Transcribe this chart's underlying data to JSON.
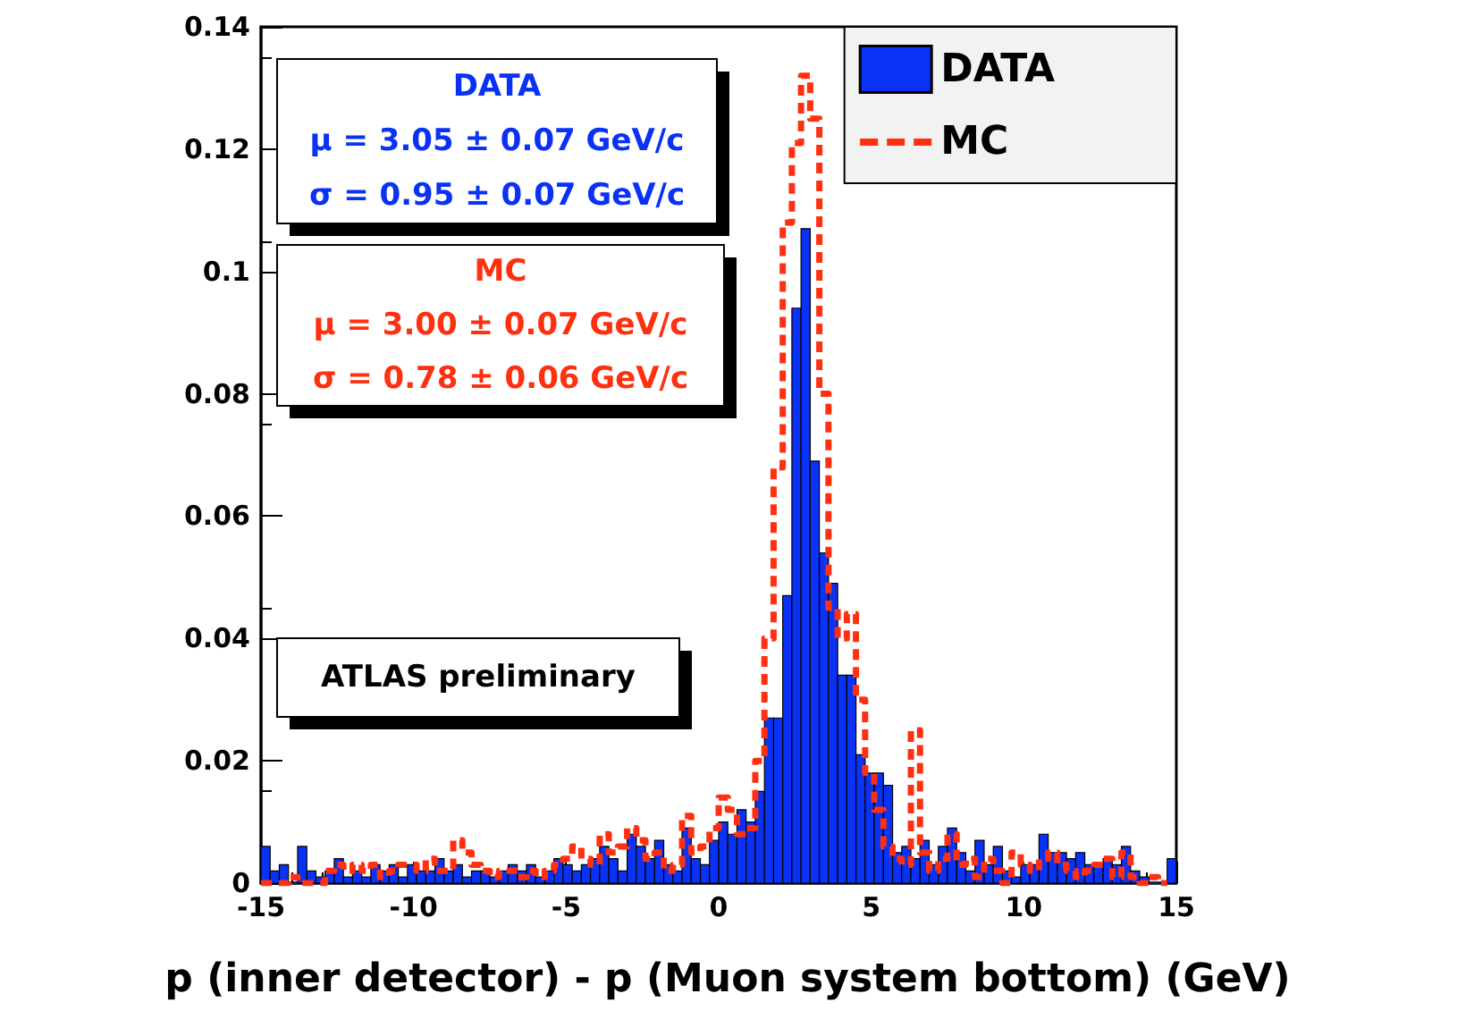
{
  "chart_data": {
    "type": "histogram",
    "xlabel": "p (inner detector) - p (Muon system bottom) (GeV)",
    "bins": [
      -15,
      -14.7,
      -14.4,
      -14.1,
      -13.8,
      -13.5,
      -13.2,
      -12.9,
      -12.6,
      -12.3,
      -12,
      -11.7,
      -11.4,
      -11.1,
      -10.8,
      -10.5,
      -10.2,
      -9.9,
      -9.6,
      -9.3,
      -9,
      -8.7,
      -8.4,
      -8.1,
      -7.8,
      -7.5,
      -7.2,
      -6.9,
      -6.6,
      -6.3,
      -6,
      -5.7,
      -5.4,
      -5.1,
      -4.8,
      -4.5,
      -4.2,
      -3.9,
      -3.6,
      -3.3,
      -3,
      -2.7,
      -2.4,
      -2.1,
      -1.8,
      -1.5,
      -1.2,
      -0.9,
      -0.6,
      -0.3,
      0,
      0.3,
      0.6,
      0.9,
      1.2,
      1.5,
      1.8,
      2.1,
      2.4,
      2.7,
      3,
      3.3,
      3.6,
      3.9,
      4.2,
      4.5,
      4.8,
      5.1,
      5.4,
      5.7,
      6,
      6.3,
      6.6,
      6.9,
      7.2,
      7.5,
      7.8,
      8.1,
      8.4,
      8.7,
      9,
      9.3,
      9.6,
      9.9,
      10.2,
      10.5,
      10.8,
      11.1,
      11.4,
      11.7,
      12,
      12.3,
      12.6,
      12.9,
      13.2,
      13.5,
      13.8,
      14.1,
      14.4,
      14.7,
      15
    ],
    "series": [
      {
        "name": "DATA",
        "color": "#0a32f5",
        "values": [
          0.006,
          0.002,
          0.003,
          0,
          0.006,
          0.002,
          0.001,
          0.002,
          0.004,
          0.001,
          0.002,
          0.001,
          0.003,
          0.002,
          0.003,
          0.001,
          0.003,
          0.002,
          0.002,
          0.004,
          0.002,
          0.003,
          0.001,
          0.002,
          0.002,
          0.001,
          0.002,
          0.003,
          0.002,
          0.003,
          0.001,
          0.002,
          0.004,
          0.003,
          0.002,
          0.003,
          0.004,
          0.006,
          0.004,
          0.002,
          0.008,
          0.006,
          0.004,
          0.007,
          0.003,
          0.002,
          0.009,
          0.004,
          0.003,
          0.007,
          0.01,
          0.008,
          0.012,
          0.01,
          0.015,
          0.027,
          0.027,
          0.047,
          0.094,
          0.107,
          0.069,
          0.054,
          0.049,
          0.034,
          0.034,
          0.021,
          0.018,
          0.018,
          0.016,
          0.005,
          0.006,
          0.004,
          0.007,
          0.003,
          0.006,
          0.009,
          0.005,
          0.002,
          0.007,
          0.003,
          0.006,
          0.002,
          0.001,
          0.003,
          0.003,
          0.008,
          0.005,
          0.005,
          0.004,
          0.005,
          0.003,
          0.003,
          0.004,
          0.003,
          0.006,
          0.002,
          0.001,
          0,
          0,
          0.004
        ]
      },
      {
        "name": "MC",
        "type": "step",
        "color": "#ff3010",
        "line_style": "dashed",
        "x": [
          -15,
          -14.7,
          -14.4,
          -14.1,
          -13.8,
          -13.5,
          -13.2,
          -12.9,
          -12.6,
          -12.3,
          -12,
          -11.7,
          -11.4,
          -11.1,
          -10.8,
          -10.5,
          -10.2,
          -9.9,
          -9.6,
          -9.3,
          -9,
          -8.7,
          -8.4,
          -8.1,
          -7.8,
          -7.5,
          -7.2,
          -6.9,
          -6.6,
          -6.3,
          -6,
          -5.7,
          -5.4,
          -5.1,
          -4.8,
          -4.5,
          -4.2,
          -3.9,
          -3.6,
          -3.3,
          -3,
          -2.7,
          -2.4,
          -2.1,
          -1.8,
          -1.5,
          -1.2,
          -0.9,
          -0.6,
          -0.3,
          0,
          0.3,
          0.6,
          0.9,
          1.2,
          1.5,
          1.8,
          2.1,
          2.4,
          2.7,
          3,
          3.3,
          3.6,
          3.9,
          4.2,
          4.5,
          4.8,
          5.1,
          5.4,
          5.7,
          6,
          6.3,
          6.6,
          6.9,
          7.2,
          7.5,
          7.8,
          8.1,
          8.4,
          8.7,
          9,
          9.3,
          9.6,
          9.9,
          10.2,
          10.5,
          10.8,
          11.1,
          11.4,
          11.7,
          12,
          12.3,
          12.6,
          12.9,
          13.2,
          13.5,
          13.8,
          14.1,
          14.4,
          14.7
        ],
        "values": [
          0,
          0,
          0,
          0.001,
          0,
          0,
          0,
          0.002,
          0.003,
          0.002,
          0.003,
          0.002,
          0.003,
          0.001,
          0.002,
          0.003,
          0.003,
          0.002,
          0.004,
          0.002,
          0.002,
          0.007,
          0.005,
          0.003,
          0.002,
          0.001,
          0.002,
          0.002,
          0.001,
          0.002,
          0.001,
          0.002,
          0.003,
          0.004,
          0.006,
          0.004,
          0.003,
          0.008,
          0.005,
          0.006,
          0.009,
          0.007,
          0.004,
          0.005,
          0.002,
          0.003,
          0.011,
          0.005,
          0.006,
          0.009,
          0.014,
          0.012,
          0.008,
          0.009,
          0.02,
          0.04,
          0.068,
          0.108,
          0.121,
          0.132,
          0.125,
          0.08,
          0.045,
          0.04,
          0.044,
          0.03,
          0.018,
          0.012,
          0.006,
          0.004,
          0.003,
          0.025,
          0.005,
          0.002,
          0.004,
          0.008,
          0.003,
          0.004,
          0.001,
          0.004,
          0.002,
          0,
          0.005,
          0.003,
          0.002,
          0.004,
          0.005,
          0.003,
          0.002,
          0.001,
          0.002,
          0.003,
          0.004,
          0.001,
          0.005,
          0.001,
          0,
          0.001,
          0,
          0
        ]
      }
    ],
    "xlim": [
      -15,
      15
    ],
    "xticks": [
      -15,
      -10,
      -5,
      0,
      5,
      10,
      15
    ],
    "ylim": [
      0,
      0.14
    ],
    "yticks": [
      0,
      0.02,
      0.04,
      0.06,
      0.08,
      0.1,
      0.12,
      0.14
    ],
    "legend": "top right",
    "annotations": [
      "DATA",
      "μ = 3.05 ± 0.07 GeV/c",
      "σ = 0.95 ± 0.07 GeV/c",
      "MC",
      "μ = 3.00 ± 0.07 GeV/c",
      "σ = 0.78 ± 0.06 GeV/c",
      "ATLAS preliminary"
    ]
  }
}
